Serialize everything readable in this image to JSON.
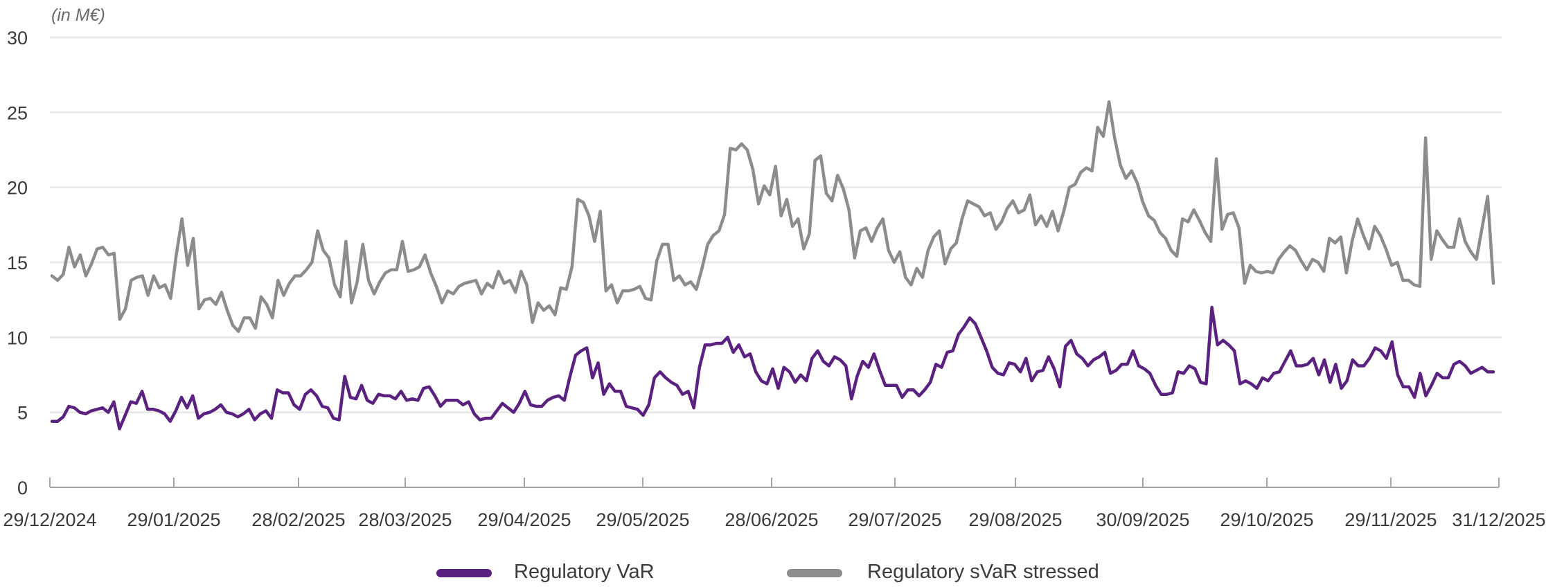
{
  "chart_data": {
    "type": "line",
    "unit_label": "(in M€)",
    "ylim": [
      0,
      30
    ],
    "yticks": [
      0,
      5,
      10,
      15,
      20,
      25,
      30
    ],
    "grid": true,
    "legend_position": "bottom-center",
    "x_tick_labels": [
      "29/12/2024",
      "29/01/2025",
      "28/02/2025",
      "28/03/2025",
      "29/04/2025",
      "29/05/2025",
      "28/06/2025",
      "29/07/2025",
      "29/08/2025",
      "30/09/2025",
      "29/10/2025",
      "29/11/2025",
      "31/12/2025"
    ],
    "series": [
      {
        "name": "Regulatory VaR",
        "color": "#5b2180",
        "values": [
          4.4,
          4.4,
          4.7,
          5.4,
          5.3,
          5.0,
          4.9,
          5.1,
          5.2,
          5.3,
          5.0,
          5.7,
          3.9,
          4.8,
          5.7,
          5.6,
          6.4,
          5.2,
          5.2,
          5.1,
          4.9,
          4.4,
          5.1,
          6.0,
          5.3,
          6.1,
          4.6,
          4.9,
          5.0,
          5.2,
          5.5,
          5.0,
          4.9,
          4.7,
          4.9,
          5.2,
          4.5,
          4.9,
          5.1,
          4.6,
          6.5,
          6.3,
          6.3,
          5.5,
          5.2,
          6.2,
          6.5,
          6.1,
          5.4,
          5.3,
          4.6,
          4.5,
          7.4,
          6.0,
          5.9,
          6.8,
          5.8,
          5.6,
          6.2,
          6.1,
          6.1,
          5.9,
          6.4,
          5.8,
          5.9,
          5.8,
          6.6,
          6.7,
          6.1,
          5.4,
          5.8,
          5.8,
          5.8,
          5.5,
          5.7,
          4.9,
          4.5,
          4.6,
          4.6,
          5.1,
          5.6,
          5.3,
          5.0,
          5.6,
          6.4,
          5.5,
          5.4,
          5.4,
          5.8,
          6.0,
          6.1,
          5.8,
          7.4,
          8.8,
          9.1,
          9.3,
          7.3,
          8.3,
          6.2,
          6.9,
          6.4,
          6.4,
          5.4,
          5.3,
          5.2,
          4.8,
          5.5,
          7.3,
          7.7,
          7.3,
          7.0,
          6.8,
          6.2,
          6.4,
          5.3,
          8.0,
          9.5,
          9.5,
          9.6,
          9.6,
          10.0,
          9.0,
          9.5,
          8.7,
          8.9,
          7.7,
          7.1,
          6.9,
          7.9,
          6.6,
          8.0,
          7.7,
          7.0,
          7.5,
          7.1,
          8.6,
          9.1,
          8.4,
          8.1,
          8.7,
          8.5,
          8.1,
          5.9,
          7.4,
          8.4,
          8.0,
          8.9,
          7.8,
          6.8,
          6.8,
          6.8,
          6.0,
          6.5,
          6.5,
          6.1,
          6.5,
          7.0,
          8.2,
          8.0,
          9.0,
          9.1,
          10.2,
          10.7,
          11.3,
          10.9,
          10.0,
          9.1,
          8.0,
          7.6,
          7.5,
          8.3,
          8.2,
          7.7,
          8.6,
          7.1,
          7.7,
          7.8,
          8.7,
          7.9,
          6.7,
          9.4,
          9.8,
          8.9,
          8.6,
          8.1,
          8.5,
          8.7,
          9.0,
          7.6,
          7.8,
          8.2,
          8.2,
          9.1,
          8.1,
          7.9,
          7.6,
          6.8,
          6.2,
          6.2,
          6.3,
          7.7,
          7.6,
          8.1,
          7.9,
          7.0,
          6.9,
          12.0,
          9.5,
          9.8,
          9.5,
          9.1,
          6.9,
          7.1,
          6.9,
          6.6,
          7.3,
          7.1,
          7.6,
          7.7,
          8.4,
          9.1,
          8.1,
          8.1,
          8.2,
          8.6,
          7.5,
          8.5,
          7.0,
          8.2,
          6.6,
          7.1,
          8.5,
          8.1,
          8.1,
          8.6,
          9.3,
          9.1,
          8.6,
          9.7,
          7.5,
          6.7,
          6.7,
          6.0,
          7.6,
          6.1,
          6.8,
          7.6,
          7.3,
          7.3,
          8.2,
          8.4,
          8.1,
          7.6,
          7.8,
          8.0,
          7.7,
          7.7
        ]
      },
      {
        "name": "Regulatory sVaR stressed",
        "color": "#8c8c8c",
        "values": [
          14.1,
          13.8,
          14.2,
          16.0,
          14.7,
          15.5,
          14.1,
          14.9,
          15.9,
          16.0,
          15.5,
          15.6,
          11.2,
          11.9,
          13.8,
          14.0,
          14.1,
          12.8,
          14.1,
          13.3,
          13.5,
          12.6,
          15.5,
          17.9,
          14.8,
          16.6,
          11.9,
          12.5,
          12.6,
          12.2,
          13.0,
          11.8,
          10.8,
          10.4,
          11.3,
          11.3,
          10.6,
          12.7,
          12.2,
          11.3,
          13.8,
          12.8,
          13.6,
          14.1,
          14.1,
          14.5,
          15.0,
          17.1,
          15.8,
          15.3,
          13.5,
          12.7,
          16.4,
          12.3,
          13.7,
          16.2,
          13.8,
          12.9,
          13.7,
          14.3,
          14.5,
          14.5,
          16.4,
          14.4,
          14.5,
          14.7,
          15.5,
          14.3,
          13.4,
          12.3,
          13.1,
          12.9,
          13.4,
          13.6,
          13.7,
          13.8,
          12.9,
          13.6,
          13.3,
          14.4,
          13.6,
          13.8,
          13.0,
          14.4,
          13.5,
          11.0,
          12.3,
          11.8,
          12.1,
          11.5,
          13.3,
          13.2,
          14.7,
          19.2,
          19.0,
          18.1,
          16.4,
          18.4,
          13.1,
          13.5,
          12.3,
          13.1,
          13.1,
          13.2,
          13.4,
          12.6,
          12.5,
          15.1,
          16.2,
          16.2,
          13.8,
          14.1,
          13.5,
          13.7,
          13.2,
          14.6,
          16.2,
          16.8,
          17.1,
          18.2,
          22.6,
          22.5,
          22.9,
          22.5,
          21.2,
          18.9,
          20.1,
          19.5,
          21.4,
          18.1,
          19.2,
          17.4,
          17.9,
          15.9,
          16.9,
          21.8,
          22.1,
          19.6,
          19.1,
          20.8,
          19.9,
          18.5,
          15.3,
          17.1,
          17.3,
          16.4,
          17.3,
          17.9,
          15.8,
          15.0,
          15.7,
          14.0,
          13.5,
          14.6,
          14.0,
          15.8,
          16.7,
          17.1,
          14.9,
          15.9,
          16.3,
          17.9,
          19.1,
          18.9,
          18.7,
          18.1,
          18.3,
          17.2,
          17.7,
          18.6,
          19.1,
          18.3,
          18.5,
          19.5,
          17.5,
          18.1,
          17.4,
          18.4,
          17.1,
          18.4,
          20.0,
          20.2,
          21.0,
          21.3,
          21.1,
          24.0,
          23.4,
          25.7,
          23.3,
          21.5,
          20.6,
          21.1,
          20.3,
          19.0,
          18.1,
          17.8,
          17.0,
          16.6,
          15.8,
          15.4,
          17.9,
          17.7,
          18.5,
          17.8,
          17.0,
          16.4,
          21.9,
          17.2,
          18.2,
          18.3,
          17.3,
          13.6,
          14.8,
          14.4,
          14.3,
          14.4,
          14.3,
          15.2,
          15.7,
          16.1,
          15.8,
          15.1,
          14.5,
          15.2,
          15.0,
          14.4,
          16.6,
          16.3,
          16.7,
          14.3,
          16.4,
          17.9,
          16.8,
          15.9,
          17.4,
          16.8,
          15.9,
          14.8,
          15.0,
          13.8,
          13.8,
          13.5,
          13.4,
          23.3,
          15.2,
          17.1,
          16.5,
          16.0,
          16.0,
          17.9,
          16.4,
          15.7,
          15.2,
          17.3,
          19.4,
          13.6
        ]
      }
    ]
  }
}
